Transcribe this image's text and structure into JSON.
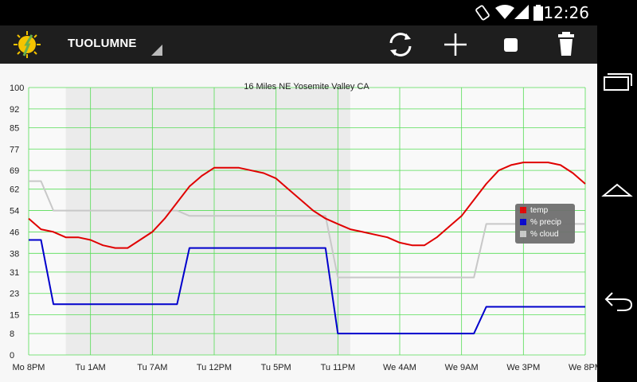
{
  "status_bar": {
    "time": "12:26",
    "icons": [
      "rotation-lock-icon",
      "wifi-icon",
      "cell-signal-icon",
      "battery-icon"
    ]
  },
  "action_bar": {
    "title": "TUOLUMNE",
    "actions": [
      "refresh-icon",
      "add-icon",
      "stop-icon",
      "trash-icon"
    ]
  },
  "nav_bar": {
    "buttons": [
      "recent-apps-icon",
      "home-icon",
      "back-icon"
    ]
  },
  "chart_data": {
    "type": "line",
    "title": "16 Miles NE Yosemite Valley CA",
    "ylim": [
      0,
      100
    ],
    "y_ticks": [
      "0",
      "8",
      "15",
      "23",
      "31",
      "38",
      "46",
      "54",
      "62",
      "69",
      "77",
      "85",
      "92",
      "100"
    ],
    "x_tick_labels": [
      "Mo 8PM",
      "Tu 1AM",
      "Tu 7AM",
      "Tu 12PM",
      "Tu 5PM",
      "Tu 11PM",
      "We 4AM",
      "We 9AM",
      "We 3PM",
      "We 8PM"
    ],
    "x_count": 46,
    "grid": true,
    "legend_position": "right",
    "night_bands": [
      [
        3,
        26
      ]
    ],
    "series": [
      {
        "name": "temp",
        "color": "#e00000",
        "values": [
          51,
          47,
          46,
          44,
          44,
          43,
          41,
          40,
          40,
          43,
          46,
          51,
          57,
          63,
          67,
          70,
          70,
          70,
          69,
          68,
          66,
          62,
          58,
          54,
          51,
          49,
          47,
          46,
          45,
          44,
          42,
          41,
          41,
          44,
          48,
          52,
          58,
          64,
          69,
          71,
          72,
          72,
          72,
          71,
          68,
          64
        ]
      },
      {
        "name": "% precip",
        "color": "#0000cc",
        "values": [
          43,
          43,
          19,
          19,
          19,
          19,
          19,
          19,
          19,
          19,
          19,
          19,
          19,
          40,
          40,
          40,
          40,
          40,
          40,
          40,
          40,
          40,
          40,
          40,
          40,
          8,
          8,
          8,
          8,
          8,
          8,
          8,
          8,
          8,
          8,
          8,
          8,
          18,
          18,
          18,
          18,
          18,
          18,
          18,
          18,
          18
        ]
      },
      {
        "name": "% cloud",
        "color": "#c8c8c8",
        "values": [
          65,
          65,
          54,
          54,
          54,
          54,
          54,
          54,
          54,
          54,
          54,
          54,
          54,
          52,
          52,
          52,
          52,
          52,
          52,
          52,
          52,
          52,
          52,
          52,
          52,
          29,
          29,
          29,
          29,
          29,
          29,
          29,
          29,
          29,
          29,
          29,
          29,
          49,
          49,
          49,
          49,
          49,
          49,
          49,
          49,
          49
        ]
      }
    ]
  }
}
